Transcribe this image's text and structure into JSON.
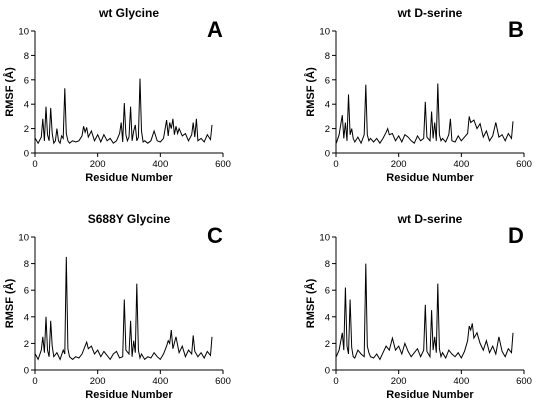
{
  "chart_data": [
    {
      "type": "line",
      "panel": "A",
      "title": "wt Glycine",
      "xlabel": "Residue Number",
      "ylabel": "RMSF (Å)",
      "xlim": [
        0,
        600
      ],
      "ylim": [
        0,
        10
      ],
      "xticks": [
        0,
        200,
        400,
        600
      ],
      "yticks": [
        0,
        2,
        4,
        6,
        8,
        10
      ],
      "series": [
        {
          "x": [
            1,
            10,
            20,
            25,
            30,
            35,
            40,
            45,
            50,
            55,
            60,
            65,
            70,
            75,
            80,
            85,
            90,
            95,
            100,
            105,
            110,
            120,
            130,
            140,
            150,
            155,
            160,
            165,
            170,
            180,
            190,
            200,
            210,
            220,
            230,
            240,
            250,
            260,
            270,
            275,
            280,
            285,
            290,
            295,
            300,
            305,
            310,
            315,
            320,
            325,
            330,
            335,
            340,
            345,
            350,
            360,
            370,
            380,
            390,
            400,
            410,
            420,
            425,
            430,
            435,
            440,
            445,
            450,
            455,
            460,
            470,
            480,
            490,
            500,
            505,
            510,
            515,
            520,
            530,
            540,
            550,
            560,
            565
          ],
          "y": [
            1.2,
            0.8,
            1.3,
            2.8,
            1.0,
            3.8,
            1.5,
            1.0,
            3.7,
            1.6,
            0.8,
            1.0,
            2.0,
            1.0,
            0.8,
            1.4,
            1.2,
            5.3,
            1.6,
            1.0,
            0.8,
            1.0,
            0.9,
            1.0,
            1.4,
            2.2,
            1.7,
            2.1,
            1.3,
            1.8,
            1.0,
            1.5,
            0.9,
            1.5,
            1.0,
            1.2,
            0.8,
            1.0,
            1.6,
            2.5,
            0.9,
            4.1,
            1.5,
            1.0,
            1.3,
            3.8,
            1.0,
            1.8,
            2.3,
            1.0,
            1.3,
            6.1,
            1.8,
            0.9,
            1.0,
            0.8,
            1.0,
            1.8,
            1.0,
            0.9,
            1.2,
            2.7,
            1.4,
            2.5,
            2.0,
            2.8,
            1.5,
            2.2,
            1.6,
            2.0,
            1.4,
            1.6,
            1.0,
            1.5,
            2.5,
            1.3,
            2.8,
            1.0,
            1.2,
            0.9,
            1.5,
            1.1,
            2.3
          ]
        }
      ]
    },
    {
      "type": "line",
      "panel": "B",
      "title": "wt D-serine",
      "xlabel": "Residue Number",
      "ylabel": "RMSF (Å)",
      "xlim": [
        0,
        600
      ],
      "ylim": [
        0,
        10
      ],
      "xticks": [
        0,
        200,
        400,
        600
      ],
      "yticks": [
        0,
        2,
        4,
        6,
        8,
        10
      ],
      "series": [
        {
          "x": [
            1,
            10,
            20,
            25,
            30,
            35,
            40,
            45,
            50,
            55,
            60,
            70,
            80,
            90,
            95,
            100,
            105,
            110,
            120,
            130,
            140,
            150,
            160,
            165,
            170,
            180,
            190,
            200,
            210,
            220,
            230,
            240,
            250,
            260,
            270,
            280,
            285,
            290,
            300,
            305,
            310,
            315,
            320,
            325,
            330,
            335,
            340,
            350,
            360,
            365,
            370,
            380,
            390,
            400,
            410,
            420,
            425,
            430,
            440,
            450,
            460,
            470,
            480,
            490,
            500,
            510,
            520,
            530,
            540,
            550,
            560,
            565
          ],
          "y": [
            0.8,
            1.5,
            3.1,
            1.2,
            2.5,
            1.0,
            4.8,
            1.5,
            2.0,
            1.2,
            0.9,
            1.3,
            0.8,
            1.5,
            5.6,
            1.5,
            1.0,
            1.2,
            0.9,
            1.2,
            0.8,
            1.2,
            1.7,
            2.0,
            1.5,
            1.6,
            1.0,
            1.4,
            0.9,
            1.5,
            1.3,
            1.0,
            0.8,
            1.4,
            1.0,
            1.2,
            4.2,
            1.3,
            1.0,
            3.4,
            1.2,
            2.5,
            1.0,
            5.7,
            1.5,
            1.0,
            1.2,
            0.9,
            1.5,
            2.8,
            1.0,
            0.9,
            1.4,
            1.0,
            1.3,
            1.6,
            3.0,
            2.5,
            2.7,
            2.0,
            2.4,
            1.3,
            1.8,
            1.0,
            1.4,
            2.5,
            1.3,
            1.5,
            1.0,
            1.6,
            1.2,
            2.6
          ]
        }
      ]
    },
    {
      "type": "line",
      "panel": "C",
      "title": "S688Y Glycine",
      "xlabel": "Residue Number",
      "ylabel": "RMSF (Å)",
      "xlim": [
        0,
        600
      ],
      "ylim": [
        0,
        10
      ],
      "xticks": [
        0,
        200,
        400,
        600
      ],
      "yticks": [
        0,
        2,
        4,
        6,
        8,
        10
      ],
      "series": [
        {
          "x": [
            1,
            10,
            20,
            25,
            30,
            35,
            40,
            45,
            50,
            55,
            60,
            70,
            80,
            90,
            95,
            100,
            105,
            110,
            120,
            130,
            140,
            150,
            160,
            165,
            170,
            180,
            190,
            200,
            210,
            220,
            230,
            240,
            250,
            260,
            270,
            280,
            285,
            290,
            300,
            305,
            310,
            315,
            320,
            325,
            330,
            335,
            340,
            350,
            360,
            370,
            380,
            390,
            400,
            410,
            420,
            425,
            430,
            435,
            440,
            450,
            460,
            470,
            480,
            490,
            500,
            505,
            510,
            520,
            530,
            540,
            550,
            560,
            565
          ],
          "y": [
            1.2,
            0.8,
            1.5,
            2.5,
            1.3,
            4.0,
            1.5,
            1.0,
            3.7,
            1.8,
            1.0,
            1.3,
            0.8,
            1.5,
            1.2,
            8.5,
            1.6,
            1.0,
            0.8,
            1.0,
            0.9,
            1.2,
            1.8,
            2.1,
            1.6,
            1.8,
            1.2,
            1.5,
            1.0,
            1.4,
            1.1,
            0.8,
            1.2,
            1.4,
            0.9,
            1.0,
            5.3,
            1.5,
            1.2,
            3.7,
            1.0,
            2.2,
            1.3,
            6.5,
            1.5,
            0.9,
            1.2,
            0.8,
            1.0,
            0.9,
            1.3,
            1.0,
            0.8,
            1.2,
            1.8,
            2.2,
            2.0,
            3.0,
            1.6,
            2.5,
            1.3,
            1.8,
            1.0,
            1.5,
            1.2,
            2.6,
            1.4,
            1.0,
            1.3,
            0.9,
            1.4,
            1.1,
            2.5
          ]
        }
      ]
    },
    {
      "type": "line",
      "panel": "D",
      "title": "wt D-serine",
      "xlabel": "Residue Number",
      "ylabel": "RMSF (Å)",
      "xlim": [
        0,
        600
      ],
      "ylim": [
        0,
        10
      ],
      "xticks": [
        0,
        200,
        400,
        600
      ],
      "yticks": [
        0,
        2,
        4,
        6,
        8,
        10
      ],
      "series": [
        {
          "x": [
            1,
            10,
            20,
            25,
            30,
            35,
            40,
            45,
            50,
            55,
            60,
            70,
            80,
            90,
            95,
            100,
            105,
            110,
            120,
            130,
            140,
            150,
            160,
            170,
            180,
            190,
            200,
            210,
            220,
            230,
            240,
            250,
            260,
            270,
            280,
            285,
            290,
            300,
            305,
            310,
            315,
            320,
            325,
            330,
            335,
            340,
            350,
            360,
            370,
            380,
            390,
            400,
            410,
            420,
            425,
            430,
            435,
            440,
            450,
            460,
            470,
            480,
            490,
            500,
            510,
            520,
            530,
            540,
            550,
            560,
            565
          ],
          "y": [
            1.0,
            1.5,
            2.8,
            1.5,
            6.2,
            1.8,
            1.2,
            5.3,
            1.7,
            1.0,
            0.9,
            1.5,
            1.2,
            1.0,
            8.0,
            1.8,
            1.3,
            1.0,
            0.9,
            1.2,
            0.8,
            1.3,
            1.8,
            1.5,
            2.4,
            1.5,
            1.8,
            1.2,
            2.0,
            1.4,
            1.0,
            1.3,
            1.6,
            1.0,
            1.5,
            4.9,
            1.4,
            1.0,
            4.5,
            1.5,
            2.5,
            1.3,
            6.5,
            1.6,
            1.0,
            1.3,
            0.9,
            1.5,
            1.2,
            1.0,
            1.3,
            0.9,
            1.4,
            2.2,
            3.3,
            3.0,
            3.5,
            2.4,
            2.8,
            2.0,
            1.5,
            2.2,
            1.3,
            1.8,
            1.2,
            2.5,
            1.4,
            1.0,
            1.6,
            1.3,
            2.8
          ]
        }
      ]
    }
  ]
}
